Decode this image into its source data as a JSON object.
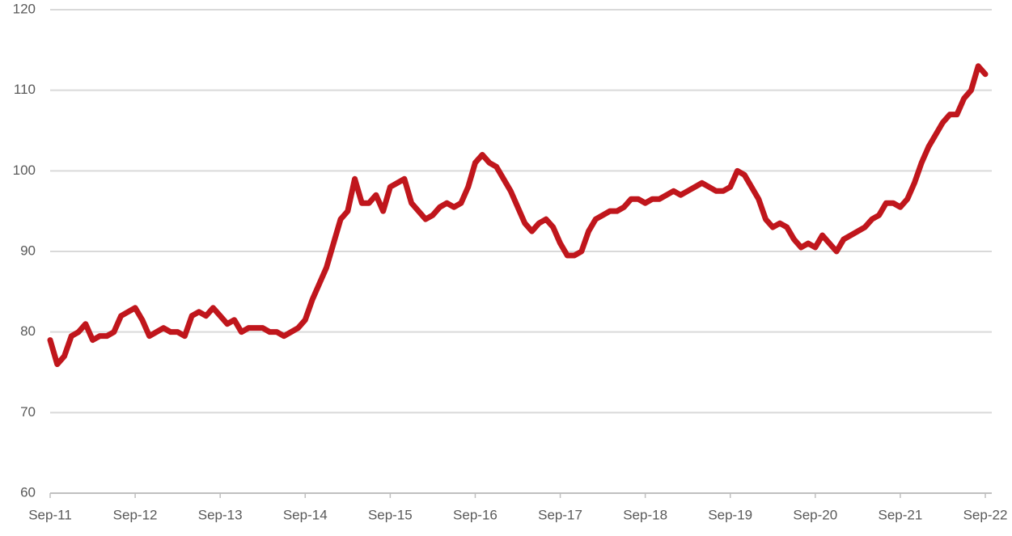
{
  "chart_data": {
    "type": "line",
    "categories": [
      "Sep-11",
      null,
      null,
      null,
      null,
      null,
      null,
      null,
      null,
      null,
      null,
      null,
      "Sep-12",
      null,
      null,
      null,
      null,
      null,
      null,
      null,
      null,
      null,
      null,
      null,
      "Sep-13",
      null,
      null,
      null,
      null,
      null,
      null,
      null,
      null,
      null,
      null,
      null,
      "Sep-14",
      null,
      null,
      null,
      null,
      null,
      null,
      null,
      null,
      null,
      null,
      null,
      "Sep-15",
      null,
      null,
      null,
      null,
      null,
      null,
      null,
      null,
      null,
      null,
      null,
      "Sep-16",
      null,
      null,
      null,
      null,
      null,
      null,
      null,
      null,
      null,
      null,
      null,
      "Sep-17",
      null,
      null,
      null,
      null,
      null,
      null,
      null,
      null,
      null,
      null,
      null,
      "Sep-18",
      null,
      null,
      null,
      null,
      null,
      null,
      null,
      null,
      null,
      null,
      null,
      "Sep-19",
      null,
      null,
      null,
      null,
      null,
      null,
      null,
      null,
      null,
      null,
      null,
      "Sep-20",
      null,
      null,
      null,
      null,
      null,
      null,
      null,
      null,
      null,
      null,
      null,
      "Sep-21",
      null,
      null,
      null,
      null,
      null,
      null,
      null,
      null,
      null,
      null,
      null,
      "Sep-22"
    ],
    "values": [
      79,
      76,
      77,
      79.5,
      80,
      81,
      79,
      79.5,
      79.5,
      80,
      82,
      82.5,
      83,
      81.5,
      79.5,
      80,
      80.5,
      80,
      80,
      79.5,
      82,
      82.5,
      82,
      83,
      82,
      81,
      81.5,
      80,
      80.5,
      80.5,
      80.5,
      80,
      80,
      79.5,
      80,
      80.5,
      81.5,
      84,
      86,
      88,
      91,
      94,
      95,
      99,
      96,
      96,
      97,
      95,
      98,
      98.5,
      99,
      96,
      95,
      94,
      94.5,
      95.5,
      96,
      95.5,
      96,
      98,
      101,
      102,
      101,
      100.5,
      99,
      97.5,
      95.5,
      93.5,
      92.5,
      93.5,
      94,
      93,
      91,
      89.5,
      89.5,
      90,
      92.5,
      94,
      94.5,
      95,
      95,
      95.5,
      96.5,
      96.5,
      96,
      96.5,
      96.5,
      97,
      97.5,
      97,
      97.5,
      98,
      98.5,
      98,
      97.5,
      97.5,
      98,
      100,
      99.5,
      98,
      96.5,
      94,
      93,
      93.5,
      93,
      91.5,
      90.5,
      91,
      90.5,
      92,
      91,
      90,
      91.5,
      92,
      92.5,
      93,
      94,
      94.5,
      96,
      96,
      95.5,
      96.5,
      98.5,
      101,
      103,
      104.5,
      106,
      107,
      107,
      109,
      110,
      113,
      112
    ],
    "color": "#c0161c",
    "ylim": [
      60,
      120
    ],
    "yticks": [
      60,
      70,
      80,
      90,
      100,
      110,
      120
    ],
    "grid": true
  }
}
